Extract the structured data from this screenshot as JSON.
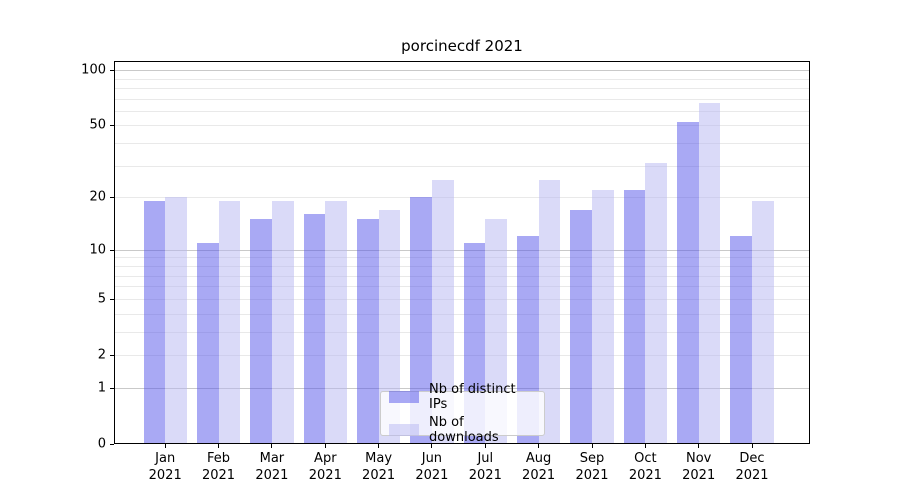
{
  "figure": {
    "title": "porcinecdf 2021"
  },
  "chart_data": {
    "type": "bar",
    "title": "porcinecdf 2021",
    "categories": [
      "Jan",
      "Feb",
      "Mar",
      "Apr",
      "May",
      "Jun",
      "Jul",
      "Aug",
      "Sep",
      "Oct",
      "Nov",
      "Dec"
    ],
    "xtick_year_line": "2021",
    "series": [
      {
        "name": "Nb of distinct IPs",
        "color": "#5353e9",
        "values": [
          19,
          11,
          15,
          16,
          15,
          20,
          11,
          12,
          17,
          22,
          52,
          12
        ]
      },
      {
        "name": "Nb of downloads",
        "color": "#b5b5f1",
        "values": [
          20,
          19,
          19,
          19,
          17,
          25,
          15,
          25,
          22,
          31,
          66,
          19
        ]
      }
    ],
    "bar_alpha": 0.5,
    "yscale": "log1p",
    "yticks": [
      0,
      1,
      2,
      5,
      10,
      20,
      50,
      100
    ],
    "ylim": [
      0,
      112
    ],
    "grid": true,
    "legend_position": "lower center"
  },
  "colors": {
    "grid_major": "#c9c9c9",
    "grid_minor": "#e9e9e9",
    "axis": "#000000",
    "legend_border": "#cccccc",
    "background": "#ffffff"
  }
}
